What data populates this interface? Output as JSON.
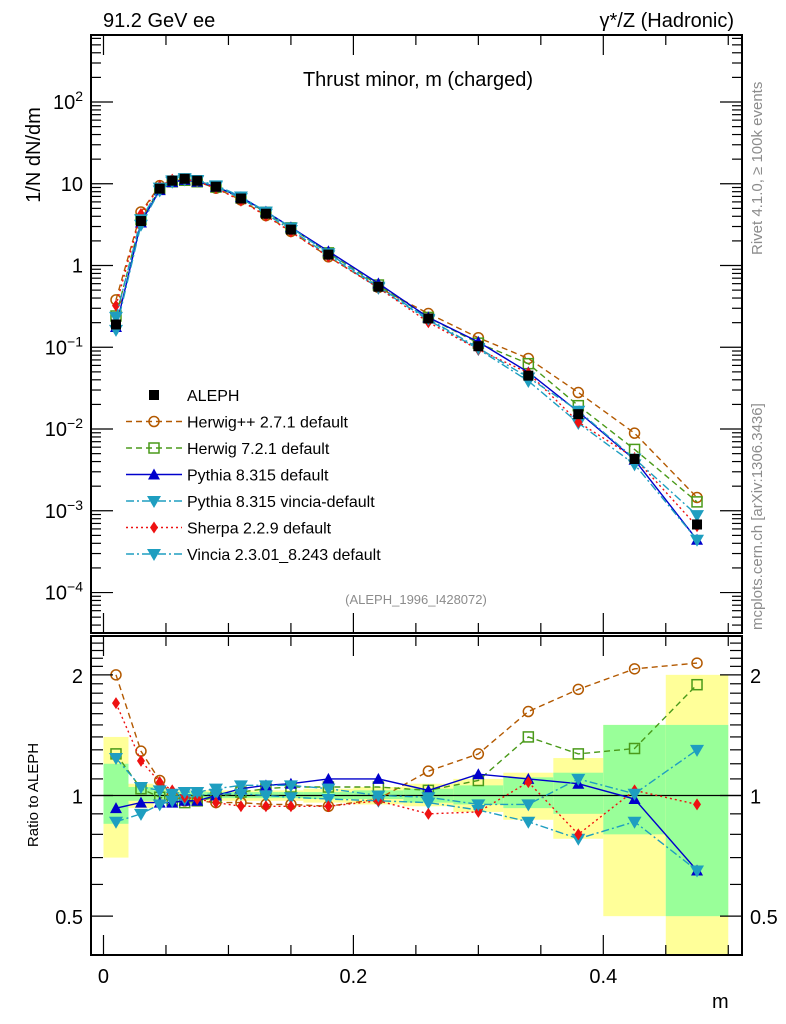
{
  "header": {
    "left_label": "91.2 GeV ee",
    "right_label": "γ*/Z (Hadronic)"
  },
  "side_labels": {
    "rivet": "Rivet 4.1.0, ≥ 100k events",
    "mcplots": "mcplots.cern.ch [arXiv:1306.3436]"
  },
  "chart_data": [
    {
      "type": "line",
      "panel": "main",
      "title": "Thrust minor, m (charged)",
      "ylabel": "1/N  dN/dm",
      "xlabel": "",
      "yscale": "log",
      "xlim": [
        -0.01,
        0.511
      ],
      "ylim": [
        3.2e-05,
        660
      ],
      "grid": false,
      "legend_position": "bottom-left",
      "analysis_label": "(ALEPH_1996_I428072)",
      "y_tick_labels": [
        "10^-4",
        "10^-3",
        "10^-2",
        "10^-1",
        "1",
        "10",
        "10^2"
      ],
      "y_ticks": [
        0.0001,
        0.001,
        0.01,
        0.1,
        1,
        10,
        100
      ],
      "x": [
        0.01,
        0.03,
        0.045,
        0.055,
        0.065,
        0.075,
        0.09,
        0.11,
        0.13,
        0.15,
        0.18,
        0.22,
        0.26,
        0.3,
        0.34,
        0.38,
        0.425,
        0.475
      ],
      "reference": {
        "name": "ALEPH",
        "color": "#000000",
        "marker": "square",
        "values": [
          0.19,
          3.5,
          8.7,
          10.9,
          11.5,
          10.9,
          9.2,
          6.6,
          4.3,
          2.75,
          1.36,
          0.55,
          0.225,
          0.103,
          0.045,
          0.0152,
          0.0043,
          0.00068
        ]
      },
      "series": [
        {
          "name": "Herwig++ 2.7.1 default",
          "color": "#b35900",
          "marker": "circle-open",
          "dash": "6,4",
          "ratio": [
            2.0,
            1.29,
            1.09,
            1.0,
            0.97,
            0.97,
            0.96,
            0.96,
            0.95,
            0.95,
            0.94,
            0.98,
            1.15,
            1.27,
            1.62,
            1.84,
            2.07,
            2.14
          ]
        },
        {
          "name": "Herwig 7.2.1 default",
          "color": "#4a9a1a",
          "marker": "square-open",
          "dash": "6,4",
          "ratio": [
            1.27,
            1.04,
            0.99,
            0.97,
            0.96,
            0.97,
            0.99,
            1.02,
            1.04,
            1.05,
            1.05,
            1.05,
            1.03,
            1.09,
            1.4,
            1.27,
            1.31,
            1.89
          ]
        },
        {
          "name": "Pythia 8.315 default",
          "color": "#0000cc",
          "marker": "triangle-up",
          "dash": "",
          "ratio": [
            0.93,
            0.96,
            0.96,
            0.96,
            0.97,
            0.97,
            1.0,
            1.04,
            1.06,
            1.07,
            1.1,
            1.1,
            1.03,
            1.13,
            1.1,
            1.07,
            0.98,
            0.65
          ]
        },
        {
          "name": "Pythia 8.315 vincia-default",
          "color": "#1e9ec0",
          "marker": "triangle-down",
          "dash": "8,3,2,3",
          "ratio": [
            0.86,
            0.9,
            0.95,
            0.97,
            0.98,
            1.0,
            1.01,
            1.01,
            1.0,
            0.99,
            0.98,
            0.97,
            0.96,
            0.92,
            0.86,
            0.78,
            0.86,
            0.65
          ]
        },
        {
          "name": "Sherpa 2.2.9 default",
          "color": "#ee1111",
          "marker": "diamond",
          "dash": "2,3",
          "ratio": [
            1.7,
            1.22,
            1.08,
            1.03,
            0.99,
            0.98,
            0.96,
            0.94,
            0.94,
            0.94,
            0.94,
            0.97,
            0.9,
            0.91,
            1.08,
            0.8,
            1.03,
            0.95
          ]
        },
        {
          "name": "Vincia 2.3.01_8.243 default",
          "color": "#1e9ec0",
          "marker": "triangle-down",
          "dash": "8,3,2,3",
          "ratio": [
            1.24,
            1.05,
            1.03,
            1.01,
            1.02,
            1.02,
            1.04,
            1.06,
            1.06,
            1.06,
            1.04,
            1.0,
            0.99,
            0.95,
            0.95,
            1.1,
            1.01,
            1.3
          ]
        }
      ]
    },
    {
      "type": "line",
      "panel": "ratio",
      "ylabel": "Ratio to ALEPH",
      "xlabel": "m",
      "yscale": "log",
      "xlim": [
        -0.01,
        0.511
      ],
      "ylim": [
        0.4,
        2.5
      ],
      "y_ticks": [
        0.5,
        1,
        2
      ],
      "y_tick_labels": [
        "0.5",
        "1",
        "2"
      ],
      "x_ticks": [
        0,
        0.2,
        0.4
      ],
      "x_tick_labels": [
        "0",
        "0.2",
        "0.4"
      ],
      "bin_edges": [
        0,
        0.02,
        0.04,
        0.05,
        0.06,
        0.07,
        0.08,
        0.1,
        0.12,
        0.14,
        0.16,
        0.2,
        0.24,
        0.28,
        0.32,
        0.36,
        0.4,
        0.45,
        0.5
      ],
      "stat_band": [
        [
          0.85,
          1.2
        ],
        [
          0.97,
          1.05
        ],
        [
          0.98,
          1.03
        ],
        [
          0.985,
          1.02
        ],
        [
          0.985,
          1.02
        ],
        [
          0.985,
          1.02
        ],
        [
          0.985,
          1.02
        ],
        [
          0.985,
          1.02
        ],
        [
          0.985,
          1.02
        ],
        [
          0.985,
          1.02
        ],
        [
          0.98,
          1.02
        ],
        [
          0.98,
          1.03
        ],
        [
          0.96,
          1.04
        ],
        [
          0.95,
          1.06
        ],
        [
          0.93,
          1.11
        ],
        [
          0.9,
          1.14
        ],
        [
          0.8,
          1.5
        ],
        [
          0.5,
          1.5
        ]
      ],
      "total_band": [
        [
          0.7,
          1.4
        ],
        [
          0.93,
          1.07
        ],
        [
          0.96,
          1.04
        ],
        [
          0.97,
          1.03
        ],
        [
          0.97,
          1.03
        ],
        [
          0.97,
          1.03
        ],
        [
          0.97,
          1.03
        ],
        [
          0.97,
          1.03
        ],
        [
          0.97,
          1.03
        ],
        [
          0.97,
          1.03
        ],
        [
          0.96,
          1.04
        ],
        [
          0.95,
          1.05
        ],
        [
          0.94,
          1.07
        ],
        [
          0.91,
          1.1
        ],
        [
          0.87,
          1.14
        ],
        [
          0.78,
          1.24
        ],
        [
          0.5,
          1.5
        ],
        [
          0.4,
          2.0
        ]
      ],
      "stat_band_color": "#99ff99",
      "total_band_color": "#ffff99"
    }
  ]
}
